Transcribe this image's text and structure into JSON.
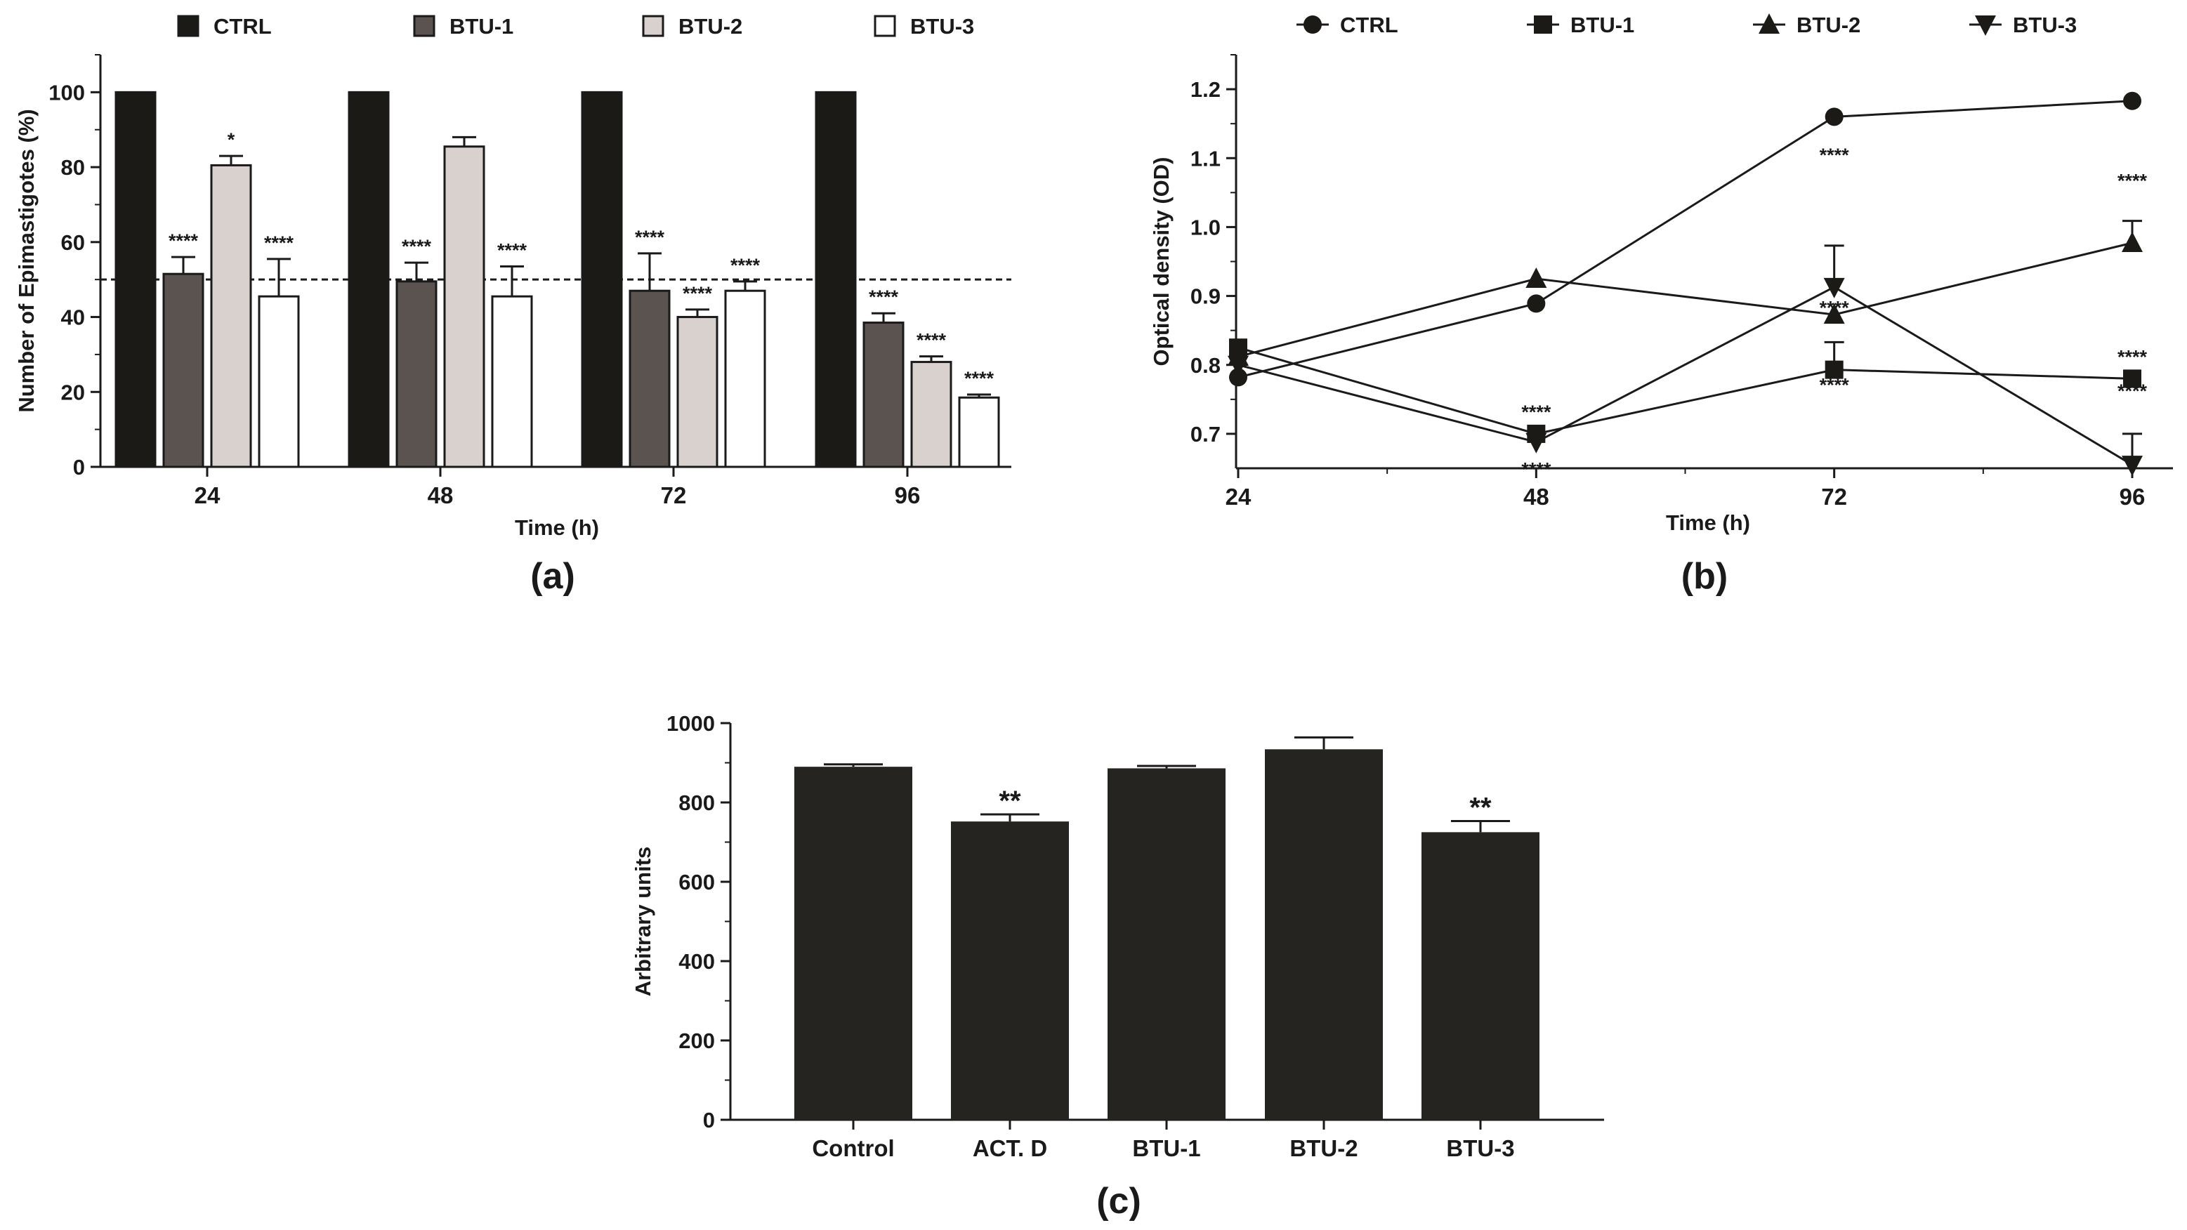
{
  "panels": {
    "a": "(a)",
    "b": "(b)",
    "c": "(c)"
  },
  "colors": {
    "CTRL": "#1b1a17",
    "BTU-1": "#5a5350",
    "BTU-2": "#d9d1cd",
    "BTU-3": "#ffffff",
    "axis": "#1a1a1a"
  },
  "chart_data": [
    {
      "id": "a",
      "type": "bar",
      "ylabel": "Number of Epimastigotes (%)",
      "xlabel": "Time (h)",
      "ylim": [
        0,
        110
      ],
      "yticks": [
        0,
        20,
        40,
        60,
        80,
        100
      ],
      "categories": [
        "24",
        "48",
        "72",
        "96"
      ],
      "reference_line": 50,
      "legend": [
        "CTRL",
        "BTU-1",
        "BTU-2",
        "BTU-3"
      ],
      "series": [
        {
          "name": "CTRL",
          "values": [
            100,
            100,
            100,
            100
          ],
          "errors": [
            0,
            0,
            0,
            0
          ],
          "stars": [
            "",
            "",
            "",
            ""
          ]
        },
        {
          "name": "BTU-1",
          "values": [
            51.5,
            49.5,
            47,
            38.5
          ],
          "errors": [
            4.5,
            5,
            10,
            2.5
          ],
          "stars": [
            "****",
            "****",
            "****",
            "****"
          ]
        },
        {
          "name": "BTU-2",
          "values": [
            80.5,
            85.5,
            40,
            28
          ],
          "errors": [
            2.5,
            2.5,
            2,
            1.5
          ],
          "stars": [
            "*",
            "",
            "****",
            "****"
          ]
        },
        {
          "name": "BTU-3",
          "values": [
            45.5,
            45.5,
            47,
            18.5
          ],
          "errors": [
            10,
            8,
            2.5,
            0.8
          ],
          "stars": [
            "****",
            "****",
            "****",
            "****"
          ]
        }
      ]
    },
    {
      "id": "b",
      "type": "line",
      "ylabel": "Optical density (OD)",
      "xlabel": "Time (h)",
      "x": [
        24,
        48,
        72,
        96
      ],
      "xticks": [
        "24",
        "48",
        "72",
        "96"
      ],
      "ylim": [
        0.65,
        1.25
      ],
      "yticks": [
        "0.7",
        "0.8",
        "0.9",
        "1.0",
        "1.1",
        "1.2"
      ],
      "legend": [
        "CTRL",
        "BTU-1",
        "BTU-2",
        "BTU-3"
      ],
      "series": [
        {
          "name": "CTRL",
          "marker": "circle",
          "values": [
            0.782,
            0.889,
            1.16,
            1.183
          ],
          "errors": [
            0,
            0,
            0,
            0
          ],
          "stars": [
            "",
            "",
            "",
            ""
          ]
        },
        {
          "name": "BTU-1",
          "marker": "square",
          "values": [
            0.825,
            0.7,
            0.793,
            0.78
          ],
          "errors": [
            0,
            0,
            0.04,
            0
          ],
          "stars": [
            "",
            "****",
            "****",
            "****"
          ]
        },
        {
          "name": "BTU-2",
          "marker": "triangle",
          "values": [
            0.812,
            0.925,
            0.873,
            0.977
          ],
          "errors": [
            0,
            0,
            0,
            0.032
          ],
          "stars": [
            "",
            "",
            "****",
            "****"
          ]
        },
        {
          "name": "BTU-3",
          "marker": "triangle-down",
          "values": [
            0.8,
            0.688,
            0.913,
            0.655
          ],
          "errors": [
            0,
            0,
            0.06,
            0.045
          ],
          "stars": [
            "",
            "****",
            "****",
            "****"
          ]
        }
      ]
    },
    {
      "id": "c",
      "type": "bar",
      "ylabel": "Arbitrary units",
      "xlabel": "",
      "ylim": [
        0,
        1000
      ],
      "yticks": [
        0,
        200,
        400,
        600,
        800,
        1000
      ],
      "categories": [
        "Control",
        "ACT. D",
        "BTU-1",
        "BTU-2",
        "BTU-3"
      ],
      "values": [
        890,
        752,
        886,
        934,
        725
      ],
      "errors": [
        6,
        18,
        6,
        30,
        28
      ],
      "stars": [
        "",
        "**",
        "",
        "",
        "**"
      ]
    }
  ]
}
